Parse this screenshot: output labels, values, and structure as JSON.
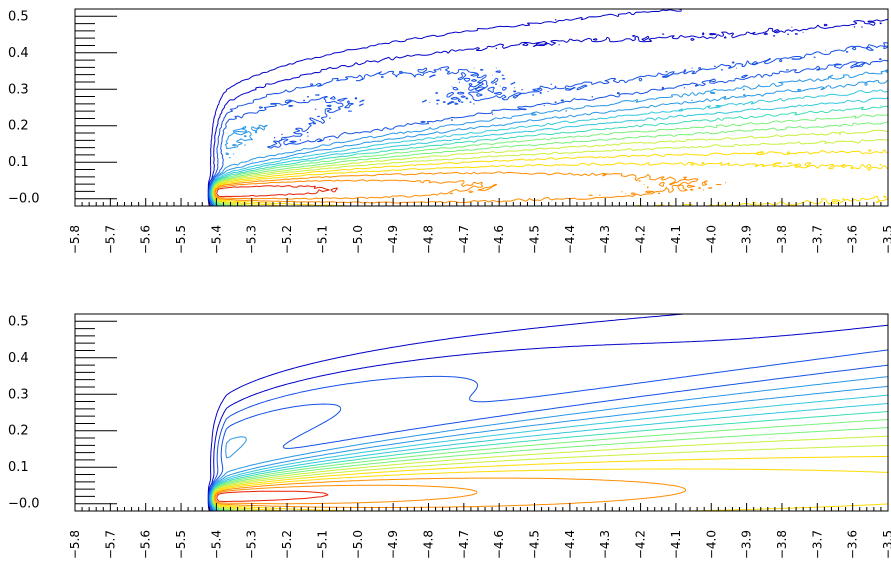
{
  "chart_data": [
    {
      "type": "contour",
      "title": "",
      "xlabel": "",
      "ylabel": "",
      "xlim": [
        -5.8,
        -3.5
      ],
      "ylim": [
        -0.02,
        0.52
      ],
      "xtick_labels": [
        "−5.8",
        "−5.7",
        "−5.6",
        "−5.5",
        "−5.4",
        "−5.3",
        "−5.2",
        "−5.1",
        "−5.0",
        "−4.9",
        "−4.8",
        "−4.7",
        "−4.6",
        "−4.5",
        "−4.4",
        "−4.3",
        "−4.2",
        "−4.1",
        "−4.0",
        "−3.9",
        "−3.8",
        "−3.7",
        "−3.6",
        "−3.5"
      ],
      "ytick_labels": [
        "−0.0",
        "0.1",
        "0.2",
        "0.3",
        "0.4",
        "0.5"
      ],
      "yticks": [
        0.0,
        0.1,
        0.2,
        0.3,
        0.4,
        0.5
      ],
      "contour_levels": 18,
      "colormap": [
        "#0000c8",
        "#1450e6",
        "#2896e6",
        "#32c8dc",
        "#3cdcb4",
        "#78f078",
        "#c8f03c",
        "#ffdc00",
        "#ff8c00",
        "#e61e00"
      ],
      "noisy": true,
      "grid": false
    },
    {
      "type": "contour",
      "title": "",
      "xlabel": "",
      "ylabel": "",
      "xlim": [
        -5.8,
        -3.5
      ],
      "ylim": [
        -0.02,
        0.52
      ],
      "xtick_labels": [
        "−5.8",
        "−5.7",
        "−5.6",
        "−5.5",
        "−5.4",
        "−5.3",
        "−5.2",
        "−5.1",
        "−5.0",
        "−4.9",
        "−4.8",
        "−4.7",
        "−4.6",
        "−4.5",
        "−4.4",
        "−4.3",
        "−4.2",
        "−4.1",
        "−4.0",
        "−3.9",
        "−3.8",
        "−3.7",
        "−3.6",
        "−3.5"
      ],
      "ytick_labels": [
        "−0.0",
        "0.1",
        "0.2",
        "0.3",
        "0.4",
        "0.5"
      ],
      "yticks": [
        0.0,
        0.1,
        0.2,
        0.3,
        0.4,
        0.5
      ],
      "contour_levels": 18,
      "colormap": [
        "#0000c8",
        "#1450e6",
        "#2896e6",
        "#32c8dc",
        "#3cdcb4",
        "#78f078",
        "#c8f03c",
        "#ffdc00",
        "#ff8c00",
        "#e61e00"
      ],
      "noisy": false,
      "grid": false
    }
  ]
}
